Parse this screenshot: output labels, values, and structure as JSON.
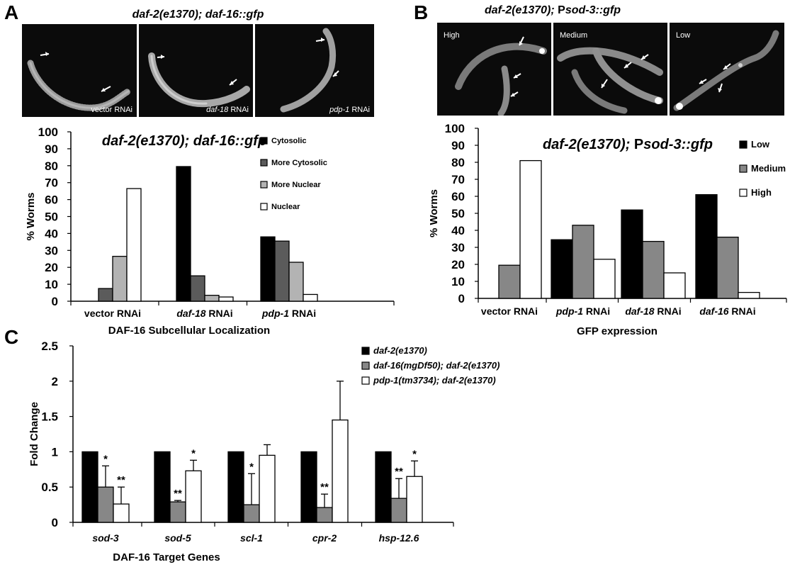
{
  "colors": {
    "black": "#000000",
    "dark_gray": "#5b5b5b",
    "mid_gray": "#878787",
    "light_gray": "#b3b3b3",
    "white": "#ffffff",
    "micrograph_bg": "#0b0b0b"
  },
  "panel_letters": {
    "a": "A",
    "b": "B",
    "c": "C"
  },
  "panel_a": {
    "image_title": "daf-2(e1370); daf-16::gfp",
    "micrographs": [
      {
        "label_italic": "",
        "label_plain": "vector RNAi"
      },
      {
        "label_italic": "daf-18",
        "label_plain": " RNAi"
      },
      {
        "label_italic": "pdp-1",
        "label_plain": " RNAi"
      }
    ]
  },
  "panel_b": {
    "image_title_italic": "daf-2(e1370); ",
    "image_title_plain": "P",
    "image_title_italic2": "sod-3::gfp",
    "micrographs": [
      {
        "label": "High"
      },
      {
        "label": "Medium"
      },
      {
        "label": "Low"
      }
    ]
  },
  "chart_data": [
    {
      "id": "chartA",
      "type": "bar",
      "title": "daf-2(e1370); daf-16::gfp",
      "title_parts": [
        {
          "text": "daf-2(e1370); daf-16::gfp",
          "italic": true
        }
      ],
      "xlabel": "DAF-16 Subcellular Localization",
      "ylabel": "% Worms",
      "ylim": [
        0,
        100
      ],
      "yticks": [
        "0",
        "10",
        "20",
        "30",
        "40",
        "50",
        "60",
        "70",
        "80",
        "90",
        "100"
      ],
      "grid": false,
      "legend_position": "top-right",
      "categories": [
        {
          "parts": [
            {
              "text": "vector RNAi",
              "italic": false
            }
          ]
        },
        {
          "parts": [
            {
              "text": "daf-18",
              "italic": true
            },
            {
              "text": " RNAi",
              "italic": false
            }
          ]
        },
        {
          "parts": [
            {
              "text": "pdp-1",
              "italic": true
            },
            {
              "text": " RNAi",
              "italic": false
            }
          ]
        }
      ],
      "series": [
        {
          "name": "Cytosolic",
          "color": "#000000",
          "values": [
            0,
            79.5,
            38
          ]
        },
        {
          "name": "More Cytosolic",
          "color": "#5b5b5b",
          "values": [
            7.5,
            15,
            35.5
          ]
        },
        {
          "name": "More Nuclear",
          "color": "#b3b3b3",
          "values": [
            26.5,
            3.5,
            23
          ]
        },
        {
          "name": "Nuclear",
          "color": "#ffffff",
          "values": [
            66.5,
            2.5,
            4
          ]
        }
      ],
      "error_bars": [],
      "annotations": []
    },
    {
      "id": "chartB",
      "type": "bar",
      "title": "daf-2(e1370); Psod-3::gfp",
      "title_parts": [
        {
          "text": "daf-2(e1370); ",
          "italic": true
        },
        {
          "text": "P",
          "italic": false
        },
        {
          "text": "sod-3::gfp",
          "italic": true
        }
      ],
      "xlabel": "GFP expression",
      "ylabel": "% Worms",
      "ylim": [
        0,
        100
      ],
      "yticks": [
        "0",
        "10",
        "20",
        "30",
        "40",
        "50",
        "60",
        "70",
        "80",
        "90",
        "100"
      ],
      "grid": false,
      "legend_position": "top-right",
      "categories": [
        {
          "parts": [
            {
              "text": "vector RNAi",
              "italic": false
            }
          ]
        },
        {
          "parts": [
            {
              "text": "pdp-1",
              "italic": true
            },
            {
              "text": " RNAi",
              "italic": false
            }
          ]
        },
        {
          "parts": [
            {
              "text": "daf-18",
              "italic": true
            },
            {
              "text": " RNAi",
              "italic": false
            }
          ]
        },
        {
          "parts": [
            {
              "text": "daf-16",
              "italic": true
            },
            {
              "text": " RNAi",
              "italic": false
            }
          ]
        }
      ],
      "series": [
        {
          "name": "Low",
          "color": "#000000",
          "values": [
            0,
            34.5,
            52,
            61
          ]
        },
        {
          "name": "Medium",
          "color": "#878787",
          "values": [
            19.5,
            43,
            33.5,
            36
          ]
        },
        {
          "name": "High",
          "color": "#ffffff",
          "values": [
            81,
            23,
            15,
            3.5
          ]
        }
      ],
      "error_bars": [],
      "annotations": []
    },
    {
      "id": "chartC",
      "type": "bar",
      "title": "",
      "title_parts": [],
      "xlabel": "DAF-16 Target Genes",
      "ylabel": "Fold Change",
      "ylim": [
        0,
        2.5
      ],
      "yticks": [
        "0",
        "0.5",
        "1",
        "1.5",
        "2",
        "2.5"
      ],
      "grid": false,
      "legend_position": "top-center",
      "categories": [
        {
          "parts": [
            {
              "text": "sod-3",
              "italic": true
            }
          ]
        },
        {
          "parts": [
            {
              "text": "sod-5",
              "italic": true
            }
          ]
        },
        {
          "parts": [
            {
              "text": "scl-1",
              "italic": true
            }
          ]
        },
        {
          "parts": [
            {
              "text": "cpr-2",
              "italic": true
            }
          ]
        },
        {
          "parts": [
            {
              "text": "hsp-12.6",
              "italic": true
            }
          ]
        }
      ],
      "series": [
        {
          "name": "daf-2(e1370)",
          "color": "#000000",
          "values": [
            1,
            1,
            1,
            1,
            1
          ]
        },
        {
          "name": "daf-16(mgDf50); daf-2(e1370)",
          "color": "#878787",
          "values": [
            0.5,
            0.29,
            0.25,
            0.21,
            0.34
          ]
        },
        {
          "name": "pdp-1(tm3734); daf-2(e1370)",
          "color": "#ffffff",
          "values": [
            0.26,
            0.73,
            0.95,
            1.45,
            0.65
          ]
        }
      ],
      "error_bars": [
        [
          0,
          0,
          0,
          0,
          0
        ],
        [
          0.3,
          0.02,
          0.44,
          0.19,
          0.28
        ],
        [
          0.24,
          0.15,
          0.15,
          0.55,
          0.22
        ]
      ],
      "annotations": [
        {
          "category": 0,
          "series": 1,
          "text": "*"
        },
        {
          "category": 0,
          "series": 2,
          "text": "**"
        },
        {
          "category": 1,
          "series": 1,
          "text": "**"
        },
        {
          "category": 1,
          "series": 2,
          "text": "*"
        },
        {
          "category": 2,
          "series": 1,
          "text": "*"
        },
        {
          "category": 3,
          "series": 1,
          "text": "**"
        },
        {
          "category": 4,
          "series": 1,
          "text": "**"
        },
        {
          "category": 4,
          "series": 2,
          "text": "*"
        }
      ]
    }
  ]
}
